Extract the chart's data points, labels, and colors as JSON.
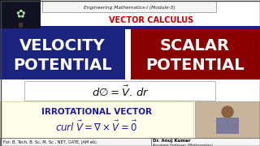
{
  "bg_color": "#ffffff",
  "header_text": "Engineering Mathematics-I (Module-5)",
  "vector_calculus_text": "VECTOR CALCULUS",
  "vector_calculus_color": "#cc0000",
  "left_box_color": "#1a237e",
  "right_box_color": "#8b0000",
  "left_box_text1": "VELOCITY",
  "left_box_text2": "POTENTIAL",
  "right_box_text1": "SCALAR",
  "right_box_text2": "POTENTIAL",
  "box_text_color": "#ffffff",
  "formula_text": "$d\\emptyset = \\vec{V}.\\,dr$",
  "irrot_bg_color": "#fefee8",
  "irrot_title": "IRROTATIONAL VECTOR",
  "irrot_title_color": "#1a1aaa",
  "irrot_formula": "$curl\\;\\vec{V} = \\nabla \\times \\vec{V} = \\vec{0}$",
  "irrot_formula_color": "#1a1aaa",
  "footer_left_text": "For: B. Tech, B. Sc, M. Sc , NET, GATE, JAM etc.",
  "footer_right_text1": "Dr. Anuj Kumar",
  "footer_right_text2": "Assistant Professor (Mathematics)",
  "logo_bg_color": "#111122",
  "top_stripe_color": "#1a237e",
  "fig_width": 3.2,
  "fig_height": 1.8,
  "dpi": 100
}
